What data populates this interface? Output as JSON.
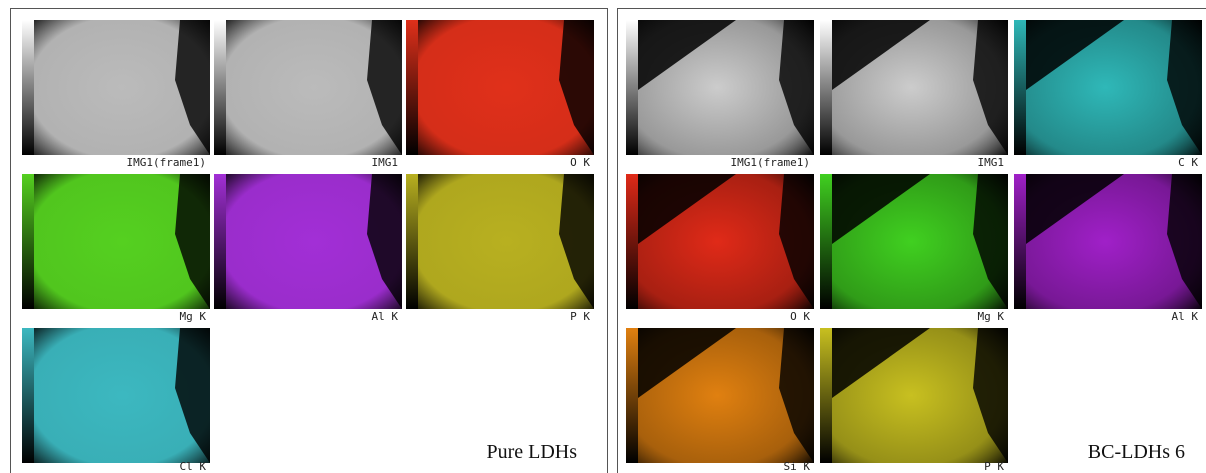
{
  "panels": [
    {
      "label": "Pure LDHs",
      "tiles": [
        "IMG1(frame1)",
        "IMG1",
        "O K",
        "Mg K",
        "Al K",
        "P K",
        "Cl K"
      ]
    },
    {
      "label": "BC-LDHs 6",
      "tiles": [
        "IMG1(frame1)",
        "IMG1",
        "C K",
        "O K",
        "Mg K",
        "Al K",
        "Si K",
        "P K"
      ]
    }
  ]
}
